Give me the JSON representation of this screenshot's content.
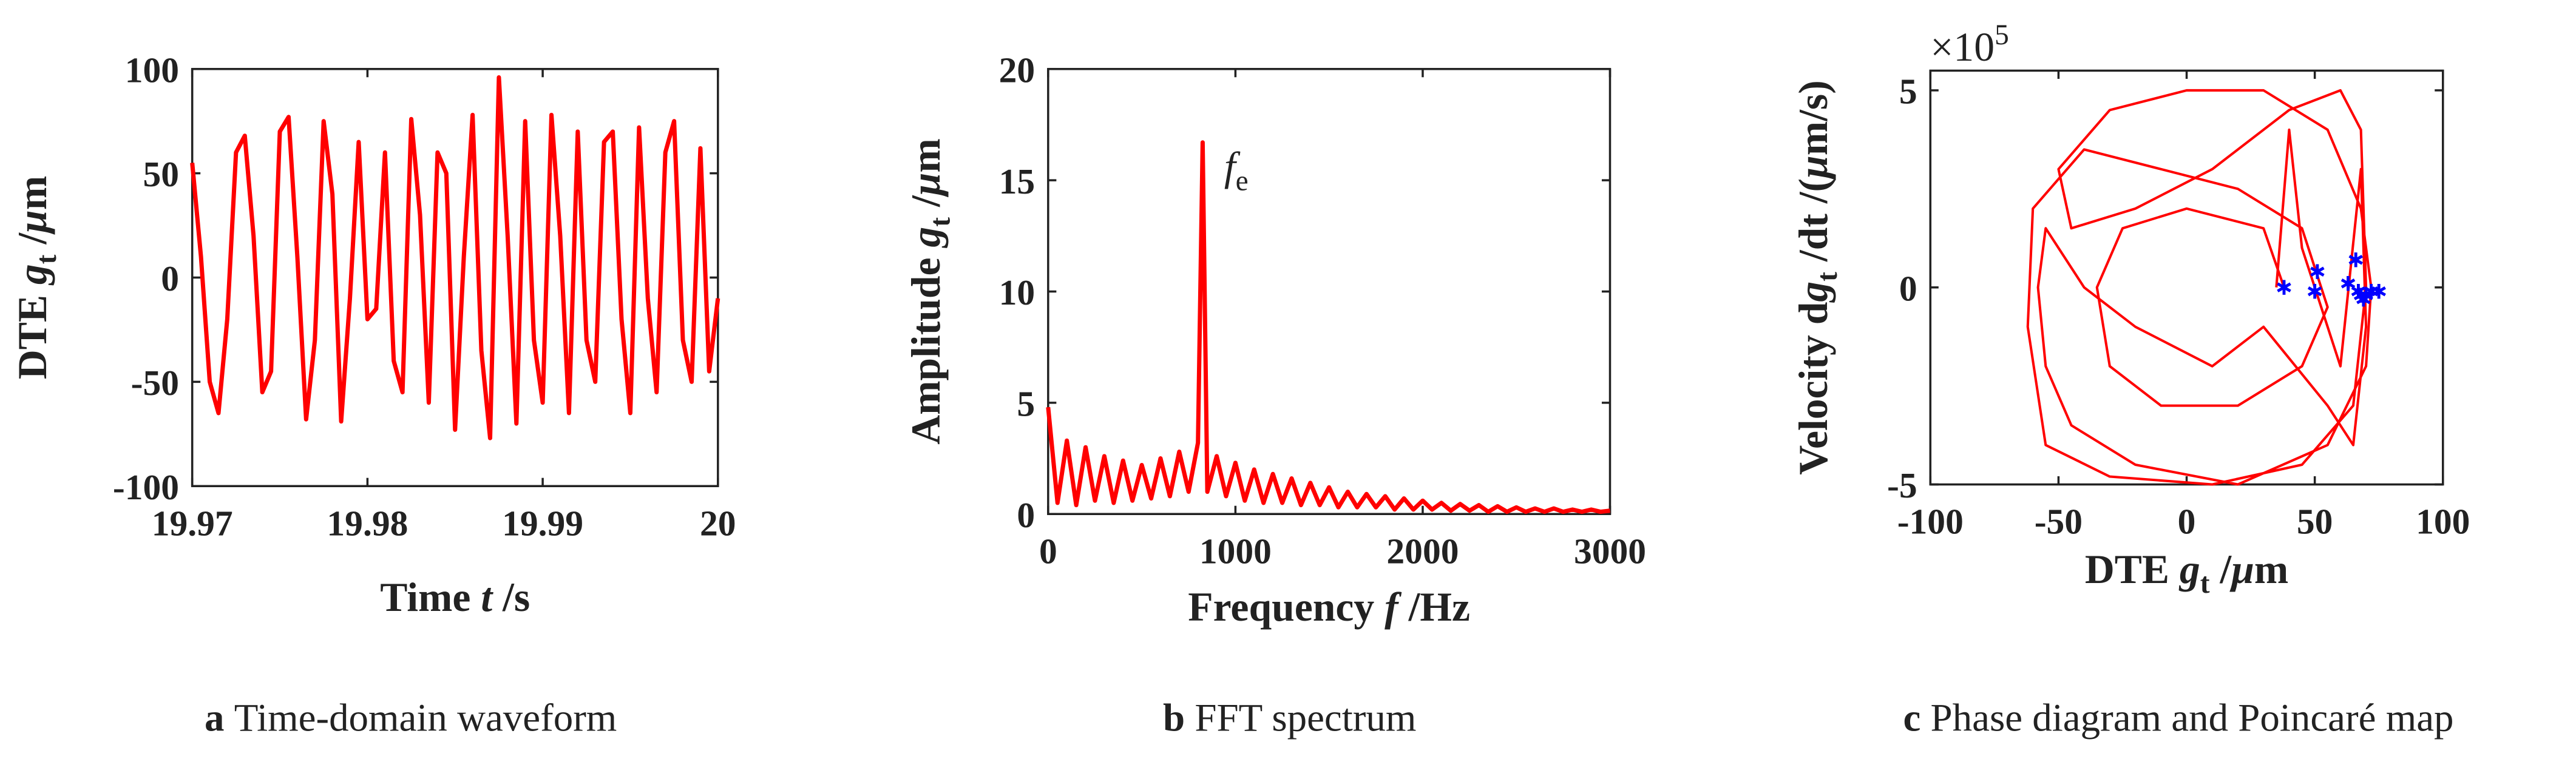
{
  "chart_data": [
    {
      "type": "line",
      "caption_label": "a",
      "caption": "Time-domain waveform",
      "xlabel": [
        {
          "text": "Time "
        },
        {
          "text": "t",
          "italic": true
        },
        {
          "text": " /s"
        }
      ],
      "ylabel": [
        {
          "text": "DTE "
        },
        {
          "text": "g",
          "italic": true
        },
        {
          "text": "t",
          "sub": true
        },
        {
          "text": " /"
        },
        {
          "text": "μ",
          "italic": true
        },
        {
          "text": "m"
        }
      ],
      "xlim": [
        19.97,
        20
      ],
      "xticks": [
        19.97,
        19.98,
        19.99,
        20
      ],
      "ylim": [
        -100,
        100
      ],
      "yticks": [
        -100,
        -50,
        0,
        50,
        100
      ],
      "series": [
        {
          "color": "#ff0000",
          "x": [
            19.97,
            19.9705,
            19.971,
            19.9715,
            19.972,
            19.9725,
            19.973,
            19.9735,
            19.974,
            19.9745,
            19.975,
            19.9755,
            19.976,
            19.9765,
            19.977,
            19.9775,
            19.978,
            19.9785,
            19.979,
            19.9795,
            19.98,
            19.9805,
            19.981,
            19.9815,
            19.982,
            19.9825,
            19.983,
            19.9835,
            19.984,
            19.9845,
            19.985,
            19.9855,
            19.986,
            19.9865,
            19.987,
            19.9875,
            19.988,
            19.9885,
            19.989,
            19.9895,
            19.99,
            19.9905,
            19.991,
            19.9915,
            19.992,
            19.9925,
            19.993,
            19.9935,
            19.994,
            19.9945,
            19.995,
            19.9955,
            19.996,
            19.9965,
            19.997,
            19.9975,
            19.998,
            19.9985,
            19.999,
            19.9995,
            20
          ],
          "values": [
            55,
            10,
            -50,
            -65,
            -20,
            60,
            68,
            20,
            -55,
            -45,
            70,
            77,
            10,
            -68,
            -30,
            75,
            40,
            -69,
            -10,
            65,
            -20,
            -15,
            60,
            -40,
            -55,
            76,
            30,
            -60,
            60,
            50,
            -73,
            10,
            78,
            -35,
            -77,
            96,
            20,
            -70,
            75,
            -30,
            -60,
            78,
            20,
            -65,
            70,
            -30,
            -50,
            65,
            70,
            -20,
            -65,
            72,
            -10,
            -55,
            60,
            75,
            -30,
            -50,
            62,
            -45,
            -10
          ]
        }
      ]
    },
    {
      "type": "line",
      "caption_label": "b",
      "caption": "FFT spectrum",
      "xlabel": [
        {
          "text": "Frequency "
        },
        {
          "text": "f",
          "italic": true
        },
        {
          "text": " /Hz"
        }
      ],
      "ylabel": [
        {
          "text": "Amplitude "
        },
        {
          "text": "g",
          "italic": true
        },
        {
          "text": "t",
          "sub": true
        },
        {
          "text": " /"
        },
        {
          "text": "μ",
          "italic": true
        },
        {
          "text": "m"
        }
      ],
      "annotation": {
        "x": 940,
        "y": 15,
        "parts": [
          {
            "text": "f",
            "italic": true
          },
          {
            "text": "e",
            "sub": true
          }
        ]
      },
      "xlim": [
        0,
        3000
      ],
      "xticks": [
        0,
        1000,
        2000,
        3000
      ],
      "ylim": [
        0,
        20
      ],
      "yticks": [
        0,
        5,
        10,
        15,
        20
      ],
      "series": [
        {
          "color": "#ff0000",
          "x": [
            0,
            50,
            100,
            150,
            200,
            250,
            300,
            350,
            400,
            450,
            500,
            550,
            600,
            650,
            700,
            750,
            800,
            825,
            850,
            900,
            950,
            1000,
            1050,
            1100,
            1150,
            1200,
            1250,
            1300,
            1350,
            1400,
            1450,
            1500,
            1550,
            1600,
            1650,
            1700,
            1750,
            1800,
            1850,
            1900,
            1950,
            2000,
            2050,
            2100,
            2150,
            2200,
            2250,
            2300,
            2350,
            2400,
            2450,
            2500,
            2550,
            2600,
            2650,
            2700,
            2750,
            2800,
            2850,
            2900,
            2950,
            3000
          ],
          "values": [
            4.8,
            0.5,
            3.3,
            0.4,
            3.0,
            0.6,
            2.6,
            0.5,
            2.4,
            0.6,
            2.2,
            0.7,
            2.5,
            0.8,
            2.8,
            1.0,
            3.2,
            16.7,
            1.0,
            2.6,
            0.8,
            2.3,
            0.6,
            2.0,
            0.5,
            1.8,
            0.5,
            1.6,
            0.4,
            1.4,
            0.4,
            1.2,
            0.3,
            1.0,
            0.3,
            0.9,
            0.3,
            0.8,
            0.2,
            0.7,
            0.2,
            0.6,
            0.2,
            0.5,
            0.15,
            0.45,
            0.15,
            0.4,
            0.1,
            0.35,
            0.1,
            0.3,
            0.1,
            0.25,
            0.1,
            0.25,
            0.1,
            0.2,
            0.1,
            0.2,
            0.1,
            0.15
          ]
        }
      ]
    },
    {
      "type": "line",
      "caption_label": "c",
      "caption": "Phase diagram and Poincaré map",
      "xlabel": [
        {
          "text": "DTE "
        },
        {
          "text": "g",
          "italic": true
        },
        {
          "text": "t",
          "sub": true
        },
        {
          "text": " /"
        },
        {
          "text": "μ",
          "italic": true
        },
        {
          "text": "m"
        }
      ],
      "ylabel": [
        {
          "text": "Velocity d"
        },
        {
          "text": "g",
          "italic": true
        },
        {
          "text": "t",
          "sub": true
        },
        {
          "text": " /dt /("
        },
        {
          "text": "μ",
          "italic": true
        },
        {
          "text": "m/s)"
        }
      ],
      "offset_label": [
        {
          "text": "×10"
        },
        {
          "text": "5",
          "sup": true
        }
      ],
      "xlim": [
        -100,
        100
      ],
      "xticks": [
        -100,
        -50,
        0,
        50,
        100
      ],
      "ylim": [
        -5,
        5.5
      ],
      "yticks": [
        -5,
        0,
        5
      ],
      "series": [
        {
          "color": "#ff0000",
          "x": [
            35,
            40,
            45,
            60,
            68,
            70,
            65,
            55,
            30,
            10,
            -20,
            -40,
            -55,
            -58,
            -55,
            -45,
            -20,
            20,
            55,
            70,
            72,
            68,
            55,
            30,
            0,
            -30,
            -50,
            -45,
            -20,
            10,
            40,
            60,
            68,
            70,
            65,
            45,
            10,
            -30,
            -55,
            -62,
            -60,
            -40,
            -10,
            20,
            45,
            55,
            45,
            20,
            -10,
            -30,
            -35,
            -25,
            0,
            30,
            38
          ],
          "values": [
            0,
            4,
            1,
            -2,
            3,
            -1,
            -4,
            -3,
            -1,
            -2,
            -1,
            0,
            1.5,
            0,
            -2,
            -3.5,
            -4.5,
            -5,
            -4,
            -2,
            0,
            2,
            4,
            5,
            5,
            4.5,
            3,
            1.5,
            2,
            3,
            4.5,
            5,
            4,
            0,
            -3,
            -4.5,
            -5,
            -4.8,
            -4,
            -1,
            2,
            3.5,
            3,
            2.5,
            1.5,
            -0.5,
            -2,
            -3,
            -3,
            -2,
            0,
            1.5,
            2,
            1.5,
            0
          ]
        },
        {
          "color": "#0000ff",
          "marker": "*",
          "x": [
            38,
            50,
            51,
            63,
            66,
            67,
            69,
            70,
            72,
            75,
            68
          ],
          "values": [
            0,
            -0.1,
            0.4,
            0.1,
            0.7,
            -0.1,
            -0.3,
            -0.2,
            -0.1,
            -0.1,
            -0.2
          ]
        }
      ]
    }
  ]
}
